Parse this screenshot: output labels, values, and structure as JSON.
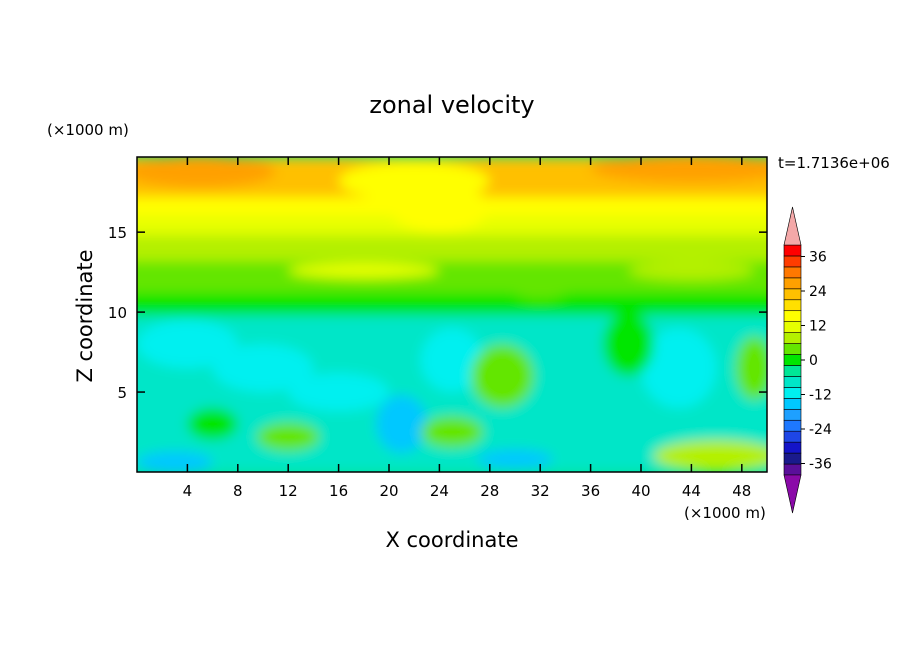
{
  "chart_data": {
    "type": "heatmap",
    "title": "zonal velocity",
    "timestamp": "t=1.7136e+06",
    "xlabel": "X coordinate",
    "ylabel": "Z coordinate",
    "x_unit": "(×1000 m)",
    "y_unit": "(×1000 m)",
    "xlim": [
      0,
      50
    ],
    "ylim": [
      0,
      19.7
    ],
    "x_ticks": [
      4,
      8,
      12,
      16,
      20,
      24,
      28,
      32,
      36,
      40,
      44,
      48
    ],
    "y_ticks": [
      5,
      10,
      15
    ],
    "colorbar": {
      "levels": [
        -40,
        -36,
        -32,
        -28,
        -24,
        -20,
        -16,
        -12,
        -8,
        -4,
        0,
        4,
        8,
        12,
        16,
        20,
        24,
        28,
        32,
        36,
        40
      ],
      "colors": [
        "#5a0f9a",
        "#1a1a8c",
        "#1414c8",
        "#1e46e6",
        "#1e78ff",
        "#1ea0ff",
        "#00c8ff",
        "#00f0f0",
        "#00e6c8",
        "#00e696",
        "#00e600",
        "#64e600",
        "#b4f000",
        "#e6ff00",
        "#ffff00",
        "#ffe000",
        "#ffc000",
        "#ffa000",
        "#ff7800",
        "#ff3c00",
        "#ff0000"
      ],
      "tick_labels": [
        "36",
        "24",
        "12",
        "0",
        "-12",
        "-24",
        "-36"
      ],
      "under_color": "#8a0aa8",
      "over_color": "#f4a8a8"
    },
    "field_summary": [
      {
        "z_range": [
          17,
          19.7
        ],
        "u_range": [
          24,
          28
        ]
      },
      {
        "z_range": [
          14,
          17
        ],
        "u_range": [
          12,
          20
        ]
      },
      {
        "z_range": [
          10,
          14
        ],
        "u_range": [
          0,
          12
        ]
      },
      {
        "z_range": [
          0,
          10
        ],
        "u_range": [
          -20,
          8
        ]
      }
    ]
  }
}
